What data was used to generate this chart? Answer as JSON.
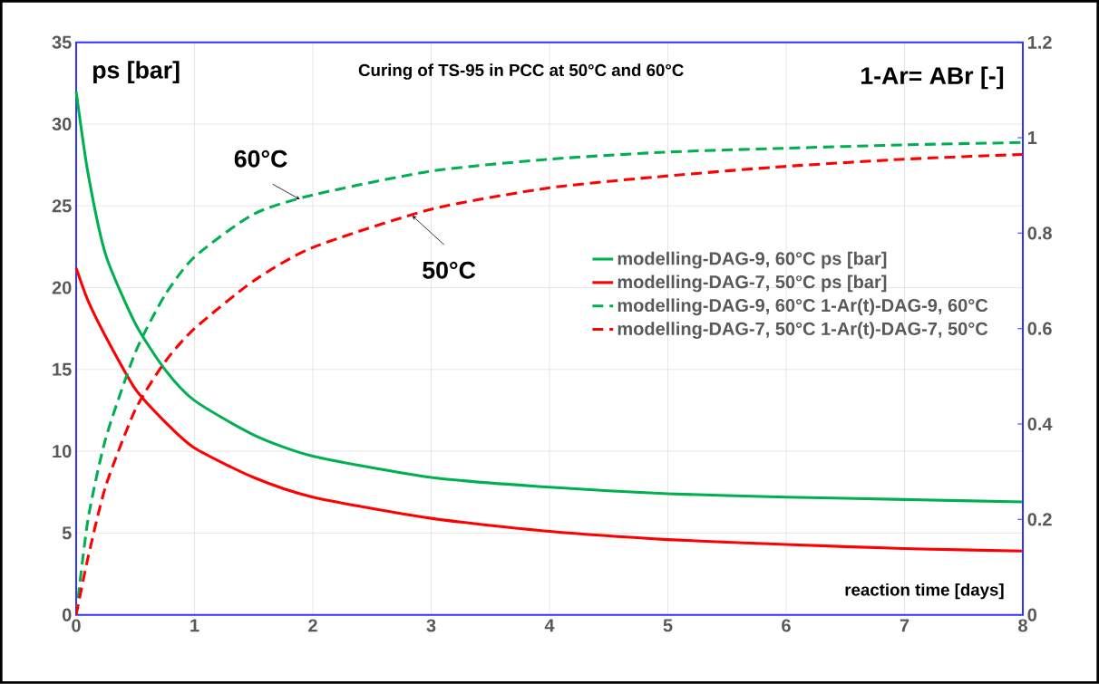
{
  "chart_data": {
    "type": "line",
    "title": "Curing of TS-95 in PCC at 50°C and 60°C",
    "xlabel": "reaction time [days]",
    "ylabel": "ps [bar]",
    "y2label": "1-Ar= ABr [-]",
    "xlim": [
      0,
      8
    ],
    "xticks": [
      0,
      1,
      2,
      3,
      4,
      5,
      6,
      7,
      8
    ],
    "ylim": [
      0,
      35
    ],
    "yticks": [
      0,
      5,
      10,
      15,
      20,
      25,
      30,
      35
    ],
    "y2lim": [
      0,
      1.2
    ],
    "y2ticks": [
      0,
      0.2,
      0.4,
      0.6,
      0.8,
      1,
      1.2
    ],
    "grid": true,
    "legend": "right",
    "series": [
      {
        "name": "modelling-DAG-9, 60°C ps [bar]",
        "color": "#00b050",
        "line_style": "solid",
        "x": [
          0,
          0.1,
          0.25,
          0.5,
          0.75,
          1,
          1.5,
          2,
          3,
          4,
          5,
          6,
          7,
          8
        ],
        "values": [
          32,
          27,
          22,
          17.8,
          15,
          13.1,
          11,
          9.7,
          8.4,
          7.8,
          7.4,
          7.2,
          7.05,
          6.9
        ]
      },
      {
        "name": "modelling-DAG-7, 50°C ps [bar]",
        "color": "#ff0000",
        "line_style": "solid",
        "x": [
          0,
          0.1,
          0.25,
          0.5,
          0.75,
          1,
          1.5,
          2,
          3,
          4,
          5,
          6,
          7,
          8
        ],
        "values": [
          21.2,
          19.2,
          17,
          13.8,
          11.8,
          10.2,
          8.4,
          7.2,
          5.9,
          5.1,
          4.6,
          4.3,
          4.05,
          3.9
        ]
      },
      {
        "name": "modelling-DAG-9, 60°C 1-Ar(t)-DAG-9, 60°C",
        "color": "#00b050",
        "line_style": "dashed",
        "axis": "y2",
        "x": [
          0,
          0.1,
          0.25,
          0.5,
          0.75,
          1,
          1.5,
          2,
          3,
          4,
          5,
          6,
          7,
          8
        ],
        "values": [
          0,
          0.2,
          0.37,
          0.55,
          0.67,
          0.75,
          0.84,
          0.88,
          0.93,
          0.955,
          0.97,
          0.978,
          0.985,
          0.99
        ]
      },
      {
        "name": "modelling-DAG-7, 50°C 1-Ar(t)-DAG-7, 50°C",
        "color": "#ff0000",
        "line_style": "dashed",
        "axis": "y2",
        "x": [
          0,
          0.1,
          0.25,
          0.5,
          0.75,
          1,
          1.5,
          2,
          3,
          4,
          5,
          6,
          7,
          8
        ],
        "values": [
          0,
          0.12,
          0.27,
          0.43,
          0.53,
          0.6,
          0.7,
          0.77,
          0.85,
          0.895,
          0.92,
          0.94,
          0.955,
          0.965
        ]
      }
    ],
    "annotations": [
      {
        "text": "60°C",
        "x": 1.89,
        "y": 25.4
      },
      {
        "text": "50°C",
        "x": 2.84,
        "y": 24.4
      }
    ]
  }
}
